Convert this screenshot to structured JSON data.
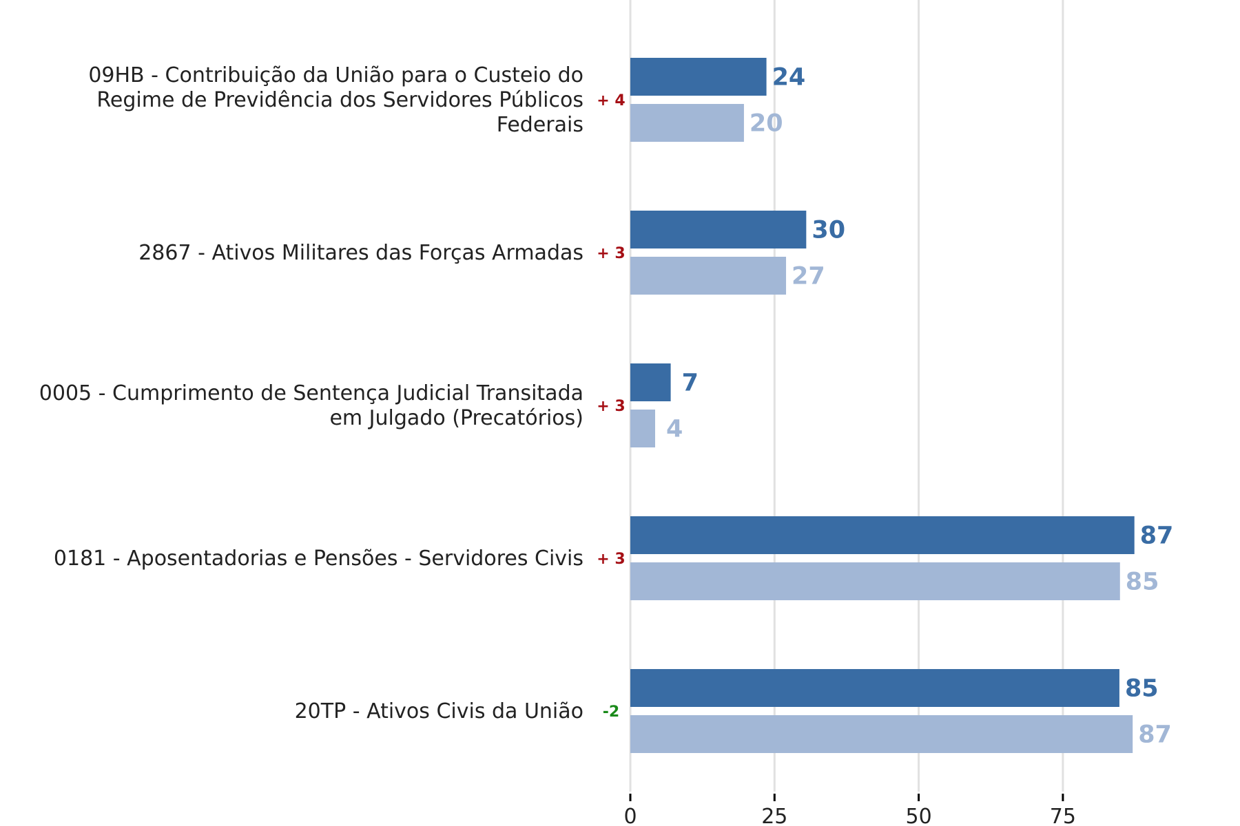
{
  "chart_data": {
    "type": "bar",
    "orientation": "horizontal",
    "categories": [
      "09HB - Contribuição da União para o Custeio do Regime de Previdência dos Servidores Públicos Federais",
      "2867 - Ativos Militares das Forças Armadas",
      "0005 - Cumprimento de Sentença Judicial Transitada em Julgado (Precatórios)",
      "0181 - Aposentadorias e Pensões - Servidores Civis",
      "20TP - Ativos Civis da União"
    ],
    "category_lines": [
      [
        "09HB - Contribuição da União para o Custeio do",
        "Regime de Previdência dos Servidores Públicos",
        "Federais"
      ],
      [
        "2867 - Ativos Militares das Forças Armadas"
      ],
      [
        "0005 - Cumprimento de Sentença Judicial Transitada",
        "em Julgado (Precatórios)"
      ],
      [
        "0181 - Aposentadorias e Pensões - Servidores Civis"
      ],
      [
        "20TP - Ativos Civis da União"
      ]
    ],
    "series": [
      {
        "values": [
          23.6,
          30.5,
          7.0,
          87.4,
          84.8
        ],
        "labels": [
          "24",
          "30",
          "7",
          "87",
          "85"
        ],
        "color": "#396ca4"
      },
      {
        "values": [
          19.7,
          27.0,
          4.3,
          84.9,
          87.1
        ],
        "labels": [
          "20",
          "27",
          "4",
          "85",
          "87"
        ],
        "color": "#a2b7d6"
      }
    ],
    "deltas": [
      {
        "text": "+ 4",
        "color": "#a50f15"
      },
      {
        "text": "+ 3",
        "color": "#a50f15"
      },
      {
        "text": "+ 3",
        "color": "#a50f15"
      },
      {
        "text": "+ 3",
        "color": "#a50f15"
      },
      {
        "text": "-2",
        "color": "#1a8a1a"
      }
    ],
    "xlim": [
      0,
      100
    ],
    "xticks": [
      0,
      25,
      50,
      75
    ],
    "grid": true,
    "legend": "none",
    "title": "",
    "xlabel": "",
    "ylabel": ""
  }
}
